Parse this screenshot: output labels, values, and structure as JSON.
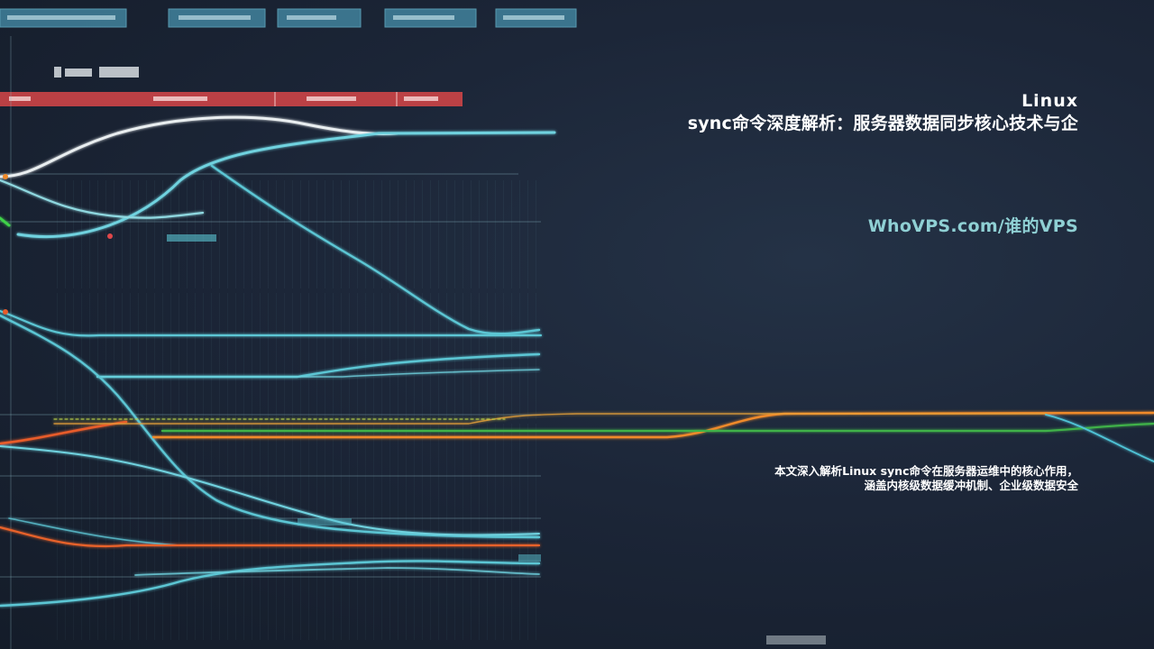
{
  "title": {
    "line1": "Linux",
    "line2": "sync命令深度解析：服务器数据同步核心技术与企"
  },
  "site": "WhoVPS.com/谁的VPS",
  "description": {
    "line1": "本文深入解析Linux sync命令在服务器运维中的核心作用，",
    "line2": "涵盖内核级数据缓冲机制、企业级数据安全"
  },
  "colors": {
    "accent": "#8fd0d4",
    "cyan_line": "#4fc3d6",
    "orange_line": "#f07a28",
    "green_line": "#3fb24a",
    "red_bar": "#d9474b"
  }
}
